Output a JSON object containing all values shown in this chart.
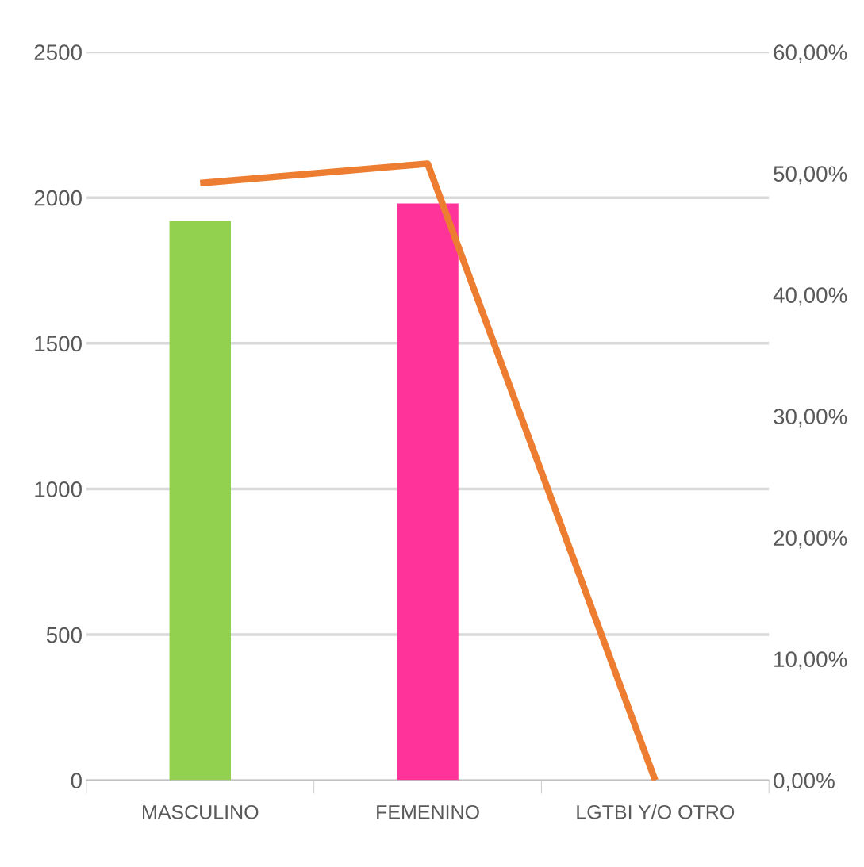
{
  "chart_data": {
    "type": "bar",
    "categories": [
      "MASCULINO",
      "FEMENINO",
      "LGTBI Y/O OTRO"
    ],
    "series": [
      {
        "colors": [
          "#92d050",
          "#ff3399",
          "#92d050"
        ],
        "values": [
          1920,
          1980,
          0
        ]
      },
      {
        "type": "line",
        "axis": "y2",
        "color": "#ed7d31",
        "values": [
          49.2,
          50.8,
          0
        ]
      }
    ],
    "ylim": [
      0,
      2500
    ],
    "yticks": [
      0,
      500,
      1000,
      1500,
      2000,
      2500
    ],
    "y2lim": [
      0,
      60
    ],
    "y2ticks": [
      {
        "value": 0,
        "label": "0,00%"
      },
      {
        "value": 10,
        "label": "10,00%"
      },
      {
        "value": 20,
        "label": "20,00%"
      },
      {
        "value": 30,
        "label": "30,00%"
      },
      {
        "value": 40,
        "label": "40,00%"
      },
      {
        "value": 50,
        "label": "50,00%"
      },
      {
        "value": 60,
        "label": "60,00%"
      }
    ],
    "grid": "y",
    "marker": "none"
  }
}
